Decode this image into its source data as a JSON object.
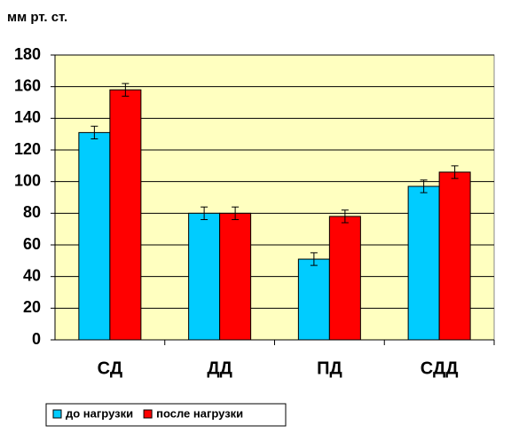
{
  "chart_data": {
    "type": "bar",
    "y_label": "мм рт. ст.",
    "categories": [
      "СД",
      "ДД",
      "ПД",
      "СДД"
    ],
    "series": [
      {
        "name": "до нагрузки",
        "color": "#00ccff",
        "values": [
          131,
          80,
          51,
          97
        ],
        "errors": [
          4,
          4,
          4,
          4
        ]
      },
      {
        "name": "после нагрузки",
        "color": "#ff0000",
        "values": [
          158,
          80,
          78,
          106
        ],
        "errors": [
          4,
          4,
          4,
          4
        ]
      }
    ],
    "ylim": [
      0,
      180
    ],
    "yticks": [
      0,
      20,
      40,
      60,
      80,
      100,
      120,
      140,
      160,
      180
    ],
    "grid": true,
    "background": "#ffffc0",
    "legend": "bottom"
  }
}
